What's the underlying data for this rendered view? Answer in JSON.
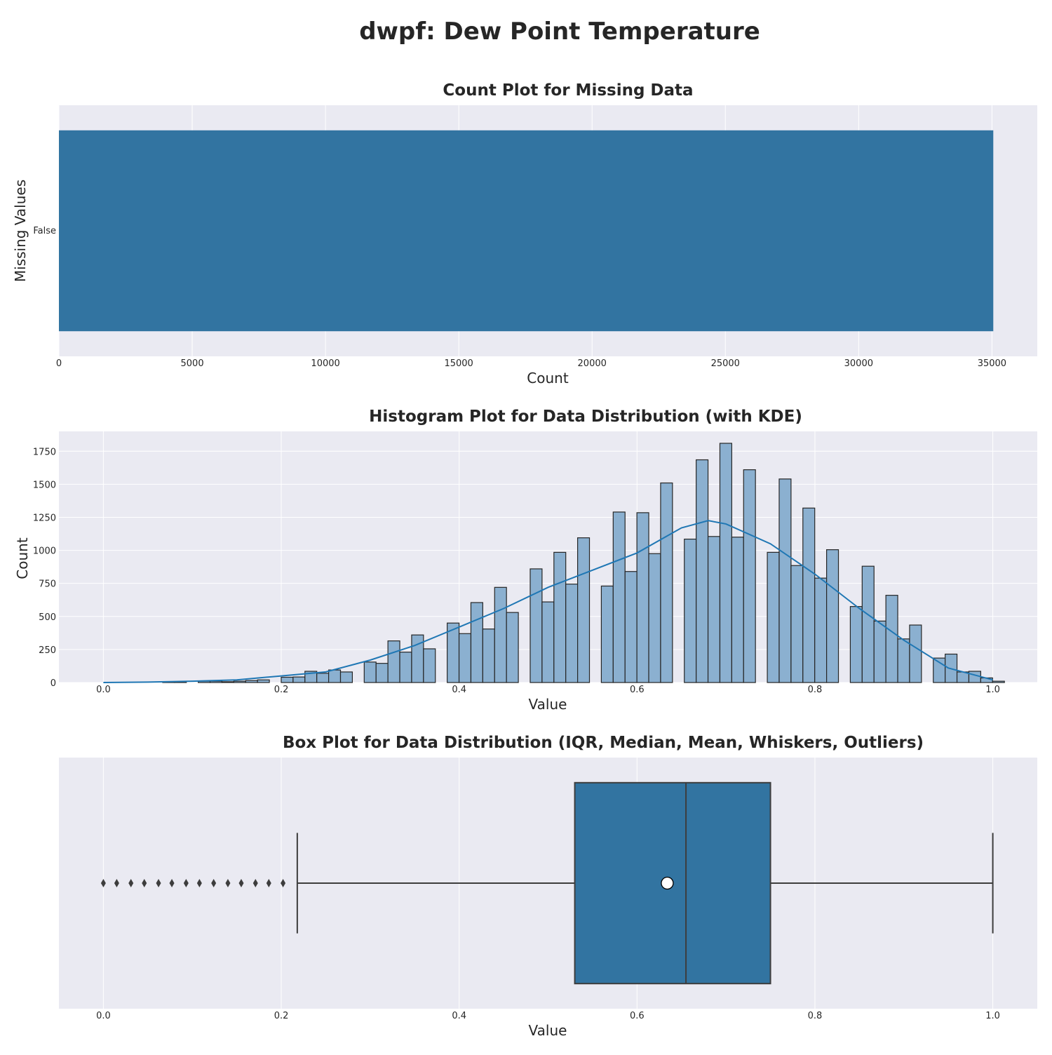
{
  "figure_title": "dwpf: Dew Point Temperature",
  "colors": {
    "panel_bg": "#eaeaf2",
    "grid": "#ffffff",
    "bar": "#3274a1",
    "hist_fill": "#8bb0d0",
    "kde": "#1f77b4",
    "edge": "#262626",
    "box_line": "#3d3d3d"
  },
  "chart_data": [
    {
      "type": "bar",
      "orientation": "horizontal",
      "title": "Count Plot for Missing Data",
      "xlabel": "Count",
      "ylabel": "Missing Values",
      "categories": [
        "False"
      ],
      "values": [
        35050
      ],
      "xlim": [
        0,
        36700
      ],
      "xticks": [
        0,
        5000,
        10000,
        15000,
        20000,
        25000,
        30000,
        35000
      ],
      "xtick_labels": [
        "0",
        "5000",
        "10000",
        "15000",
        "20000",
        "25000",
        "30000",
        "35000"
      ],
      "grid": true
    },
    {
      "type": "histogram",
      "title": "Histogram Plot for Data Distribution (with KDE)",
      "xlabel": "Value",
      "ylabel": "Count",
      "xlim": [
        -0.05,
        1.05
      ],
      "ylim": [
        0,
        1900
      ],
      "xticks": [
        0.0,
        0.2,
        0.4,
        0.6,
        0.8,
        1.0
      ],
      "xtick_labels": [
        "0.0",
        "0.2",
        "0.4",
        "0.6",
        "0.8",
        "1.0"
      ],
      "yticks": [
        0,
        250,
        500,
        750,
        1000,
        1250,
        1500,
        1750
      ],
      "ytick_labels": [
        "0",
        "250",
        "500",
        "750",
        "1000",
        "1250",
        "1500",
        "1750"
      ],
      "bin_width": 0.01333,
      "bin_start": 0.0,
      "counts": [
        0,
        0,
        0,
        0,
        0,
        5,
        7,
        0,
        10,
        10,
        6,
        10,
        15,
        20,
        0,
        40,
        42,
        85,
        70,
        95,
        80,
        0,
        155,
        145,
        315,
        230,
        360,
        255,
        0,
        450,
        370,
        605,
        405,
        720,
        530,
        0,
        860,
        610,
        985,
        745,
        1095,
        0,
        730,
        1290,
        840,
        1285,
        975,
        1510,
        0,
        1085,
        1685,
        1105,
        1810,
        1100,
        1610,
        0,
        985,
        1540,
        885,
        1320,
        790,
        1005,
        0,
        575,
        880,
        465,
        660,
        330,
        435,
        0,
        185,
        215,
        80,
        85,
        35,
        10
      ],
      "kde": {
        "x": [
          0.0,
          0.05,
          0.1,
          0.15,
          0.2,
          0.25,
          0.3,
          0.35,
          0.4,
          0.45,
          0.5,
          0.55,
          0.6,
          0.65,
          0.68,
          0.7,
          0.75,
          0.8,
          0.85,
          0.9,
          0.95,
          1.0
        ],
        "y": [
          0,
          3,
          10,
          20,
          50,
          80,
          170,
          280,
          420,
          560,
          720,
          850,
          980,
          1170,
          1225,
          1200,
          1050,
          820,
          560,
          320,
          110,
          20
        ]
      },
      "grid": true
    },
    {
      "type": "box",
      "title": "Box Plot for Data Distribution (IQR, Median, Mean, Whiskers, Outliers)",
      "xlabel": "Value",
      "xlim": [
        -0.05,
        1.05
      ],
      "xticks": [
        0.0,
        0.2,
        0.4,
        0.6,
        0.8,
        1.0
      ],
      "xtick_labels": [
        "0.0",
        "0.2",
        "0.4",
        "0.6",
        "0.8",
        "1.0"
      ],
      "q1": 0.53,
      "median": 0.655,
      "q3": 0.75,
      "mean": 0.634,
      "whisker_low": 0.218,
      "whisker_high": 1.0,
      "outliers": [
        0.0,
        0.015,
        0.031,
        0.046,
        0.062,
        0.077,
        0.093,
        0.108,
        0.124,
        0.14,
        0.155,
        0.171,
        0.186,
        0.202
      ],
      "grid": true
    }
  ]
}
